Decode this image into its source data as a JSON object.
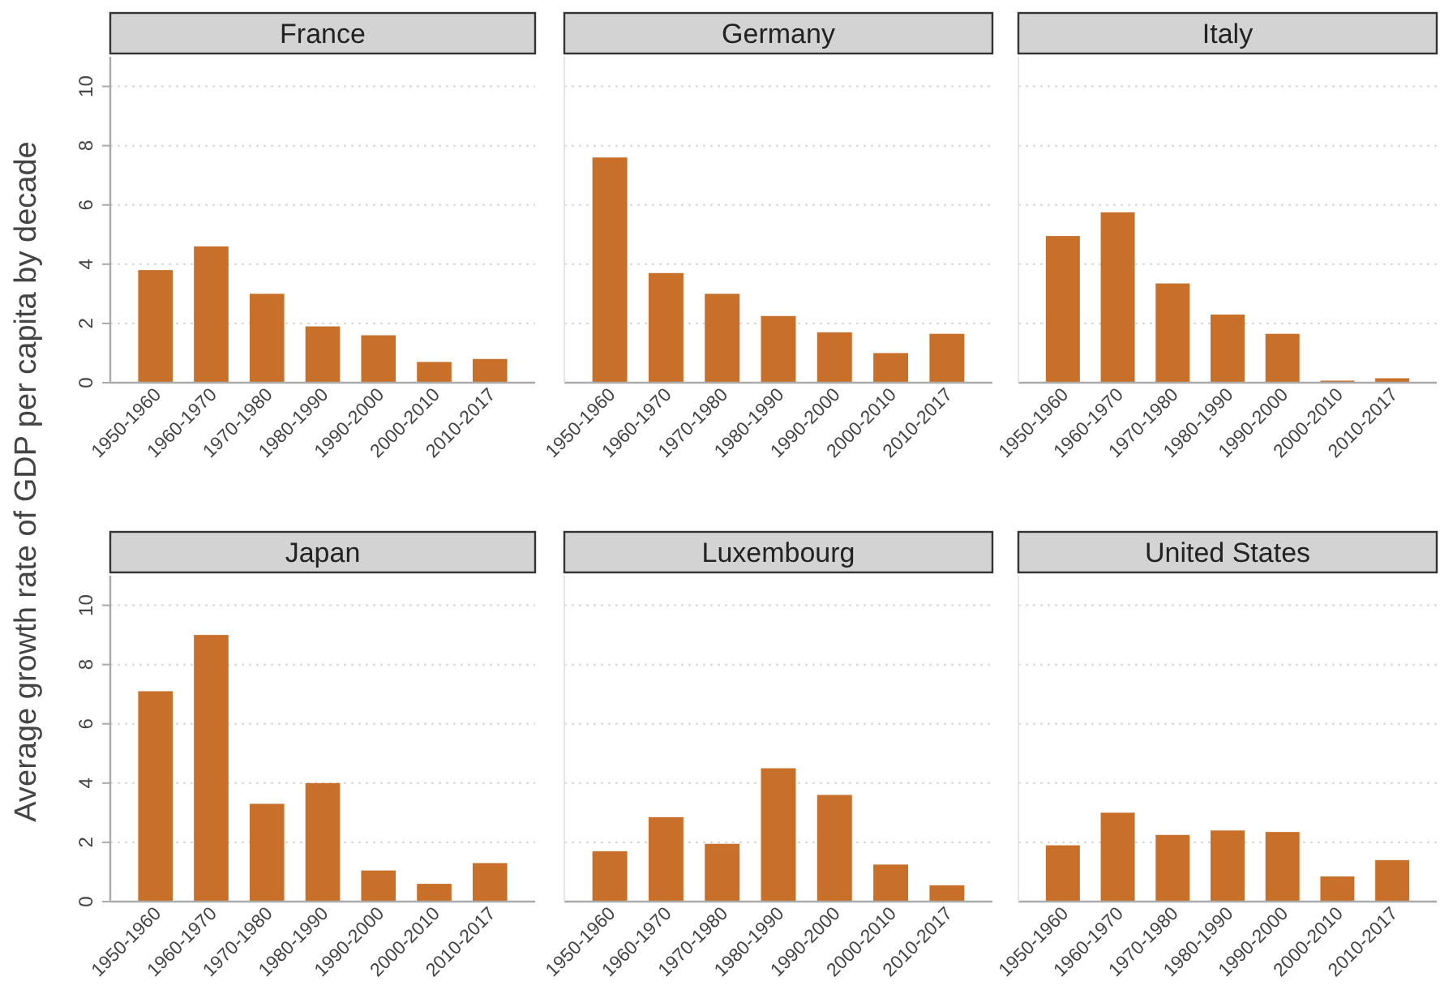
{
  "chart_data": [
    {
      "type": "bar",
      "title": "France",
      "ylabel": "Average growth rate of GDP per capita by decade",
      "categories": [
        "1950-1960",
        "1960-1970",
        "1970-1980",
        "1980-1990",
        "1990-2000",
        "2000-2010",
        "2010-2017"
      ],
      "values": [
        3.8,
        4.6,
        3.0,
        1.9,
        1.6,
        0.7,
        0.8
      ],
      "color": "#c8702a",
      "ylim": [
        0,
        11
      ],
      "yticks": [
        0,
        2,
        4,
        6,
        8,
        10
      ],
      "grid": "y"
    },
    {
      "type": "bar",
      "title": "Germany",
      "categories": [
        "1950-1960",
        "1960-1970",
        "1970-1980",
        "1980-1990",
        "1990-2000",
        "2000-2010",
        "2010-2017"
      ],
      "values": [
        7.6,
        3.7,
        3.0,
        2.25,
        1.7,
        1.0,
        1.65
      ],
      "color": "#c8702a",
      "ylim": [
        0,
        11
      ],
      "yticks": [
        0,
        2,
        4,
        6,
        8,
        10
      ],
      "grid": "y",
      "tick_labels": "x"
    },
    {
      "type": "bar",
      "title": "Italy",
      "categories": [
        "1950-1960",
        "1960-1970",
        "1970-1980",
        "1980-1990",
        "1990-2000",
        "2000-2010",
        "2010-2017"
      ],
      "values": [
        4.95,
        5.75,
        3.35,
        2.3,
        1.65,
        0.07,
        0.15
      ],
      "color": "#c8702a",
      "ylim": [
        0,
        11
      ],
      "yticks": [
        0,
        2,
        4,
        6,
        8,
        10
      ],
      "grid": "y",
      "tick_labels": "x"
    },
    {
      "type": "bar",
      "title": "Japan",
      "categories": [
        "1950-1960",
        "1960-1970",
        "1970-1980",
        "1980-1990",
        "1990-2000",
        "2000-2010",
        "2010-2017"
      ],
      "values": [
        7.1,
        9.0,
        3.3,
        4.0,
        1.05,
        0.6,
        1.3
      ],
      "color": "#c8702a",
      "ylim": [
        0,
        11
      ],
      "yticks": [
        0,
        2,
        4,
        6,
        8,
        10
      ],
      "grid": "y"
    },
    {
      "type": "bar",
      "title": "Luxembourg",
      "categories": [
        "1950-1960",
        "1960-1970",
        "1970-1980",
        "1980-1990",
        "1990-2000",
        "2000-2010",
        "2010-2017"
      ],
      "values": [
        1.7,
        2.85,
        1.95,
        4.5,
        3.6,
        1.25,
        0.55
      ],
      "color": "#c8702a",
      "ylim": [
        0,
        11
      ],
      "yticks": [
        0,
        2,
        4,
        6,
        8,
        10
      ],
      "grid": "y",
      "tick_labels": "x"
    },
    {
      "type": "bar",
      "title": "United States",
      "categories": [
        "1950-1960",
        "1960-1970",
        "1970-1980",
        "1980-1990",
        "1990-2000",
        "2000-2010",
        "2010-2017"
      ],
      "values": [
        1.9,
        3.0,
        2.25,
        2.4,
        2.35,
        0.85,
        1.4
      ],
      "color": "#c8702a",
      "ylim": [
        0,
        11
      ],
      "yticks": [
        0,
        2,
        4,
        6,
        8,
        10
      ],
      "grid": "y",
      "tick_labels": "x"
    }
  ]
}
